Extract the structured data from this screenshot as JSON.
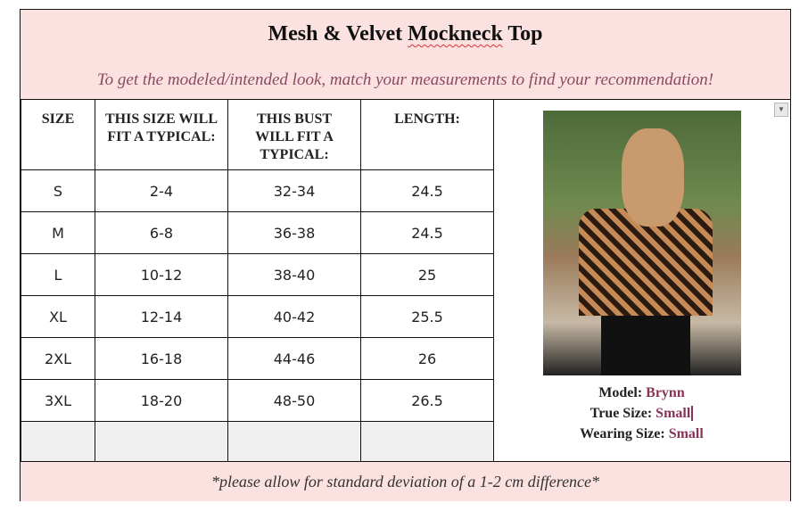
{
  "title_pre": "Mesh & Velvet ",
  "title_squiggle": "Mockneck",
  "title_post": " Top",
  "subtitle": "To get the modeled/intended look, match your measurements to find your recommendation!",
  "table": {
    "headers": [
      "SIZE",
      "THIS SIZE WILL FIT A TYPICAL:",
      "THIS BUST WILL FIT A TYPICAL:",
      "LENGTH:"
    ],
    "rows": [
      [
        "S",
        "2-4",
        "32-34",
        "24.5"
      ],
      [
        "M",
        "6-8",
        "36-38",
        "24.5"
      ],
      [
        "L",
        "10-12",
        "38-40",
        "25"
      ],
      [
        "XL",
        "12-14",
        "40-42",
        "25.5"
      ],
      [
        "2XL",
        "16-18",
        "44-46",
        "26"
      ],
      [
        "3XL",
        "18-20",
        "48-50",
        "26.5"
      ]
    ]
  },
  "model": {
    "model_label": "Model: ",
    "model_value": "Brynn",
    "true_label": "True Size: ",
    "true_value": "Small",
    "wearing_label": "Wearing Size: ",
    "wearing_value": "Small"
  },
  "footer": "*please allow for standard deviation of a 1-2 cm difference*",
  "colors": {
    "header_bg": "#fce1e1",
    "accent": "#8a3358"
  }
}
